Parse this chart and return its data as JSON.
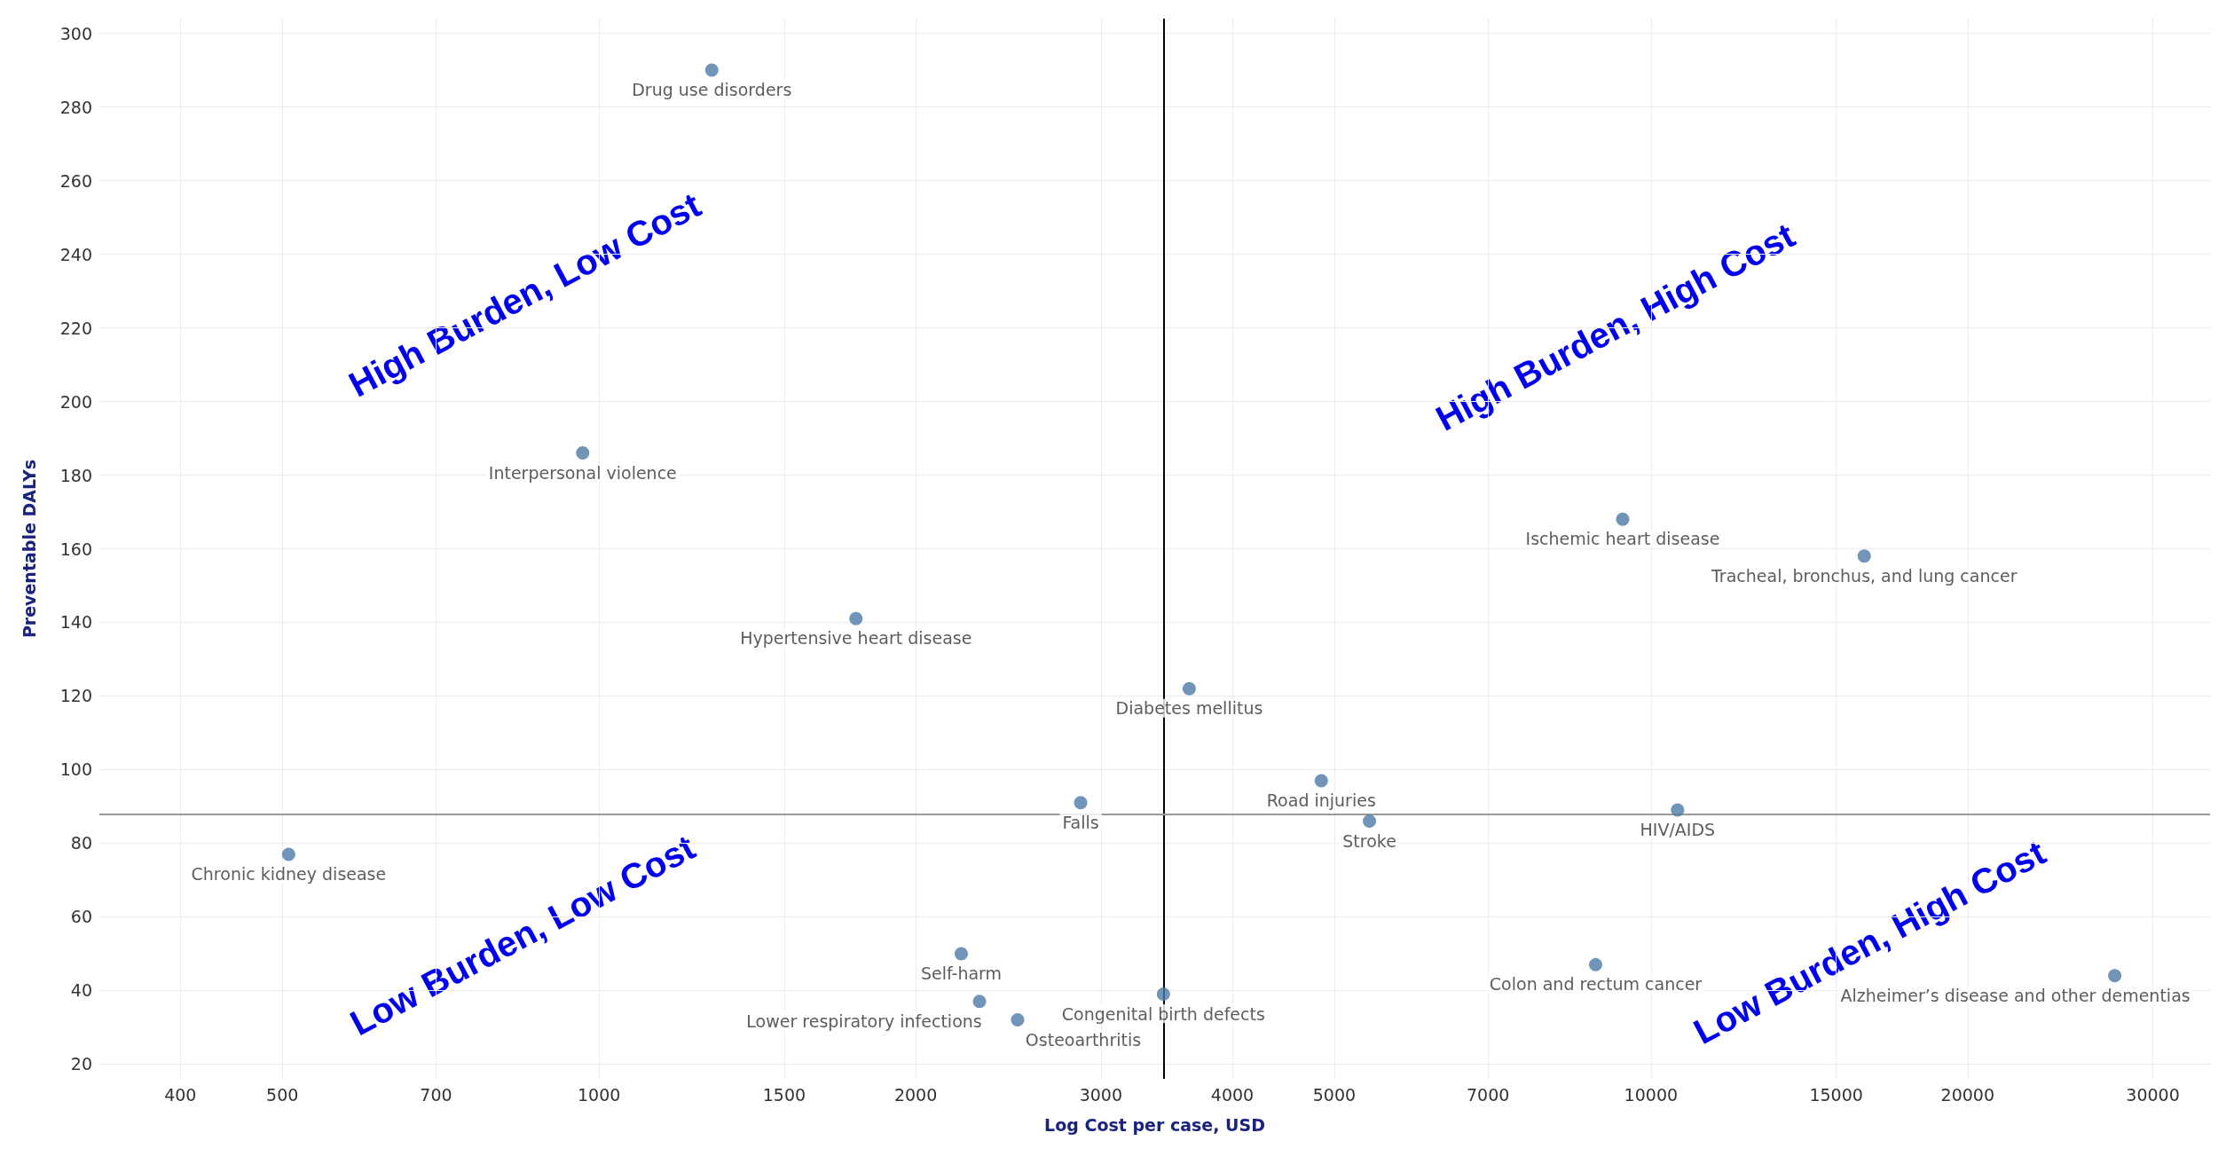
{
  "chart_data": {
    "type": "scatter",
    "xlabel": "Log Cost per case, USD",
    "ylabel": "Preventable DALYs",
    "log": "x",
    "grid": true,
    "legend": false,
    "marker": "circle",
    "xlim": [
      335,
      34000
    ],
    "ylim": [
      16,
      304
    ],
    "xticks": [
      400,
      500,
      700,
      1000,
      1500,
      2000,
      3000,
      4000,
      5000,
      7000,
      10000,
      15000,
      20000,
      30000
    ],
    "yticks": [
      20,
      40,
      60,
      80,
      100,
      120,
      140,
      160,
      180,
      200,
      220,
      240,
      260,
      280,
      300
    ],
    "ref_lines": [
      {
        "axis": "x",
        "value": 3440,
        "color": "#000000"
      },
      {
        "axis": "y",
        "value": 88,
        "color": "#999999"
      }
    ],
    "annotations": [
      "High Burden, Low Cost",
      "High Burden, High Cost",
      "Low Burden, Low Cost",
      "Low Burden, High Cost"
    ],
    "series": [
      {
        "name": "Drug use disorders",
        "color": "#4e79a7",
        "x": [
          1280
        ],
        "values": [
          290
        ]
      },
      {
        "name": "Interpersonal violence",
        "color": "#4e79a7",
        "x": [
          965
        ],
        "values": [
          186
        ]
      },
      {
        "name": "Hypertensive heart disease",
        "color": "#4e79a7",
        "x": [
          1755
        ],
        "values": [
          141
        ]
      },
      {
        "name": "Diabetes mellitus",
        "color": "#4e79a7",
        "x": [
          3640
        ],
        "values": [
          122
        ]
      },
      {
        "name": "Road injuries",
        "color": "#4e79a7",
        "x": [
          4860
        ],
        "values": [
          97
        ]
      },
      {
        "name": "Falls",
        "color": "#4e79a7",
        "x": [
          2870
        ],
        "values": [
          91
        ]
      },
      {
        "name": "Stroke",
        "color": "#4e79a7",
        "x": [
          5400
        ],
        "values": [
          86
        ]
      },
      {
        "name": "HIV/AIDS",
        "color": "#4e79a7",
        "x": [
          10600
        ],
        "values": [
          89
        ]
      },
      {
        "name": "Ischemic heart disease",
        "color": "#4e79a7",
        "x": [
          9400
        ],
        "values": [
          168
        ]
      },
      {
        "name": "Tracheal, bronchus, and lung cancer",
        "color": "#4e79a7",
        "x": [
          15950
        ],
        "values": [
          158
        ]
      },
      {
        "name": "Chronic kidney disease",
        "color": "#4e79a7",
        "x": [
          507
        ],
        "values": [
          77
        ]
      },
      {
        "name": "Self-harm",
        "color": "#4e79a7",
        "x": [
          2210
        ],
        "values": [
          50
        ]
      },
      {
        "name": "Lower respiratory infections",
        "color": "#4e79a7",
        "x": [
          2300
        ],
        "values": [
          37
        ]
      },
      {
        "name": "Osteoarthritis",
        "color": "#4e79a7",
        "x": [
          2500
        ],
        "values": [
          32
        ]
      },
      {
        "name": "Congenital birth defects",
        "color": "#4e79a7",
        "x": [
          3440
        ],
        "values": [
          39
        ]
      },
      {
        "name": "Colon and rectum cancer",
        "color": "#4e79a7",
        "x": [
          8860
        ],
        "values": [
          47
        ]
      },
      {
        "name": "Alzheimer’s disease and other dementias",
        "color": "#4e79a7",
        "x": [
          27600
        ],
        "values": [
          44
        ]
      }
    ]
  }
}
